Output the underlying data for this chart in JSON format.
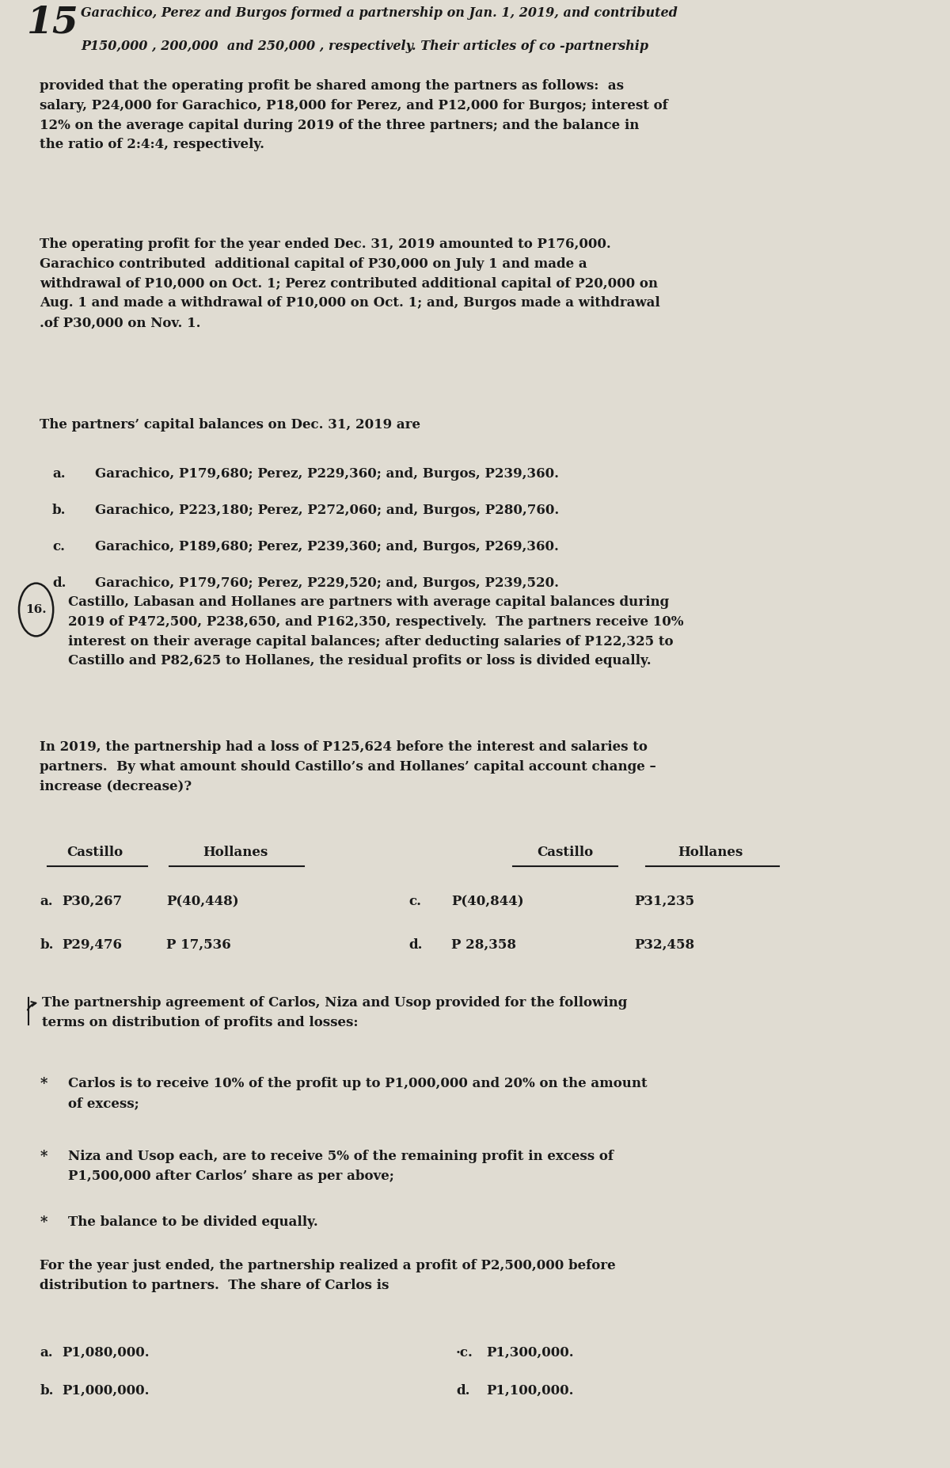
{
  "bg_color": "#e0dcd2",
  "text_color": "#1a1a1a",
  "font_family": "DejaVu Serif",
  "page_width": 12.0,
  "page_height": 18.54,
  "q15_hw_line1": "Garachico, Perez and Burgos formed a partnership on Jan. 1, 2019, and contributed",
  "q15_hw_line2": "P150,000 , 200,000  and 250,000 , respectively. Their articles of co -partnership",
  "q15_body1": "provided that the operating profit be shared among the partners as follows:  as\nsalary, P24,000 for Garachico, P18,000 for Perez, and P12,000 for Burgos; interest of\n12% on the average capital during 2019 of the three partners; and the balance in\nthe ratio of 2:4:4, respectively.",
  "q15_body2": "The operating profit for the year ended Dec. 31, 2019 amounted to P176,000.\nGarachico contributed  additional capital of P30,000 on July 1 and made a\nwithdrawal of P10,000 on Oct. 1; Perez contributed additional capital of P20,000 on\nAug. 1 and made a withdrawal of P10,000 on Oct. 1; and, Burgos made a withdrawal\n.of P30,000 on Nov. 1.",
  "q15_para3": "The partners’ capital balances on Dec. 31, 2019 are",
  "q15_choices": [
    [
      "a.",
      "Garachico, P179,680; Perez, P229,360; and, Burgos, P239,360."
    ],
    [
      "b.",
      "Garachico, P223,180; Perez, P272,060; and, Burgos, P280,760."
    ],
    [
      "c.",
      "Garachico, P189,680; Perez, P239,360; and, Burgos, P269,360."
    ],
    [
      "d.",
      "Garachico, P179,760; Perez, P229,520; and, Burgos, P239,520."
    ]
  ],
  "q16_body1": "Castillo, Labasan and Hollanes are partners with average capital balances during\n2019 of P472,500, P238,650, and P162,350, respectively.  The partners receive 10%\ninterest on their average capital balances; after deducting salaries of P122,325 to\nCastillo and P82,625 to Hollanes, the residual profits or loss is divided equally.",
  "q16_body2": "In 2019, the partnership had a loss of P125,624 before the interest and salaries to\npartners.  By what amount should Castillo’s and Hollanes’ capital account change –\nincrease (decrease)?",
  "q16_hdr": [
    "Castillo",
    "Hollanes",
    "Castillo",
    "Hollanes"
  ],
  "q16_r1": [
    "a.",
    "P30,267",
    "P(40,448)",
    "c.",
    "P(40,844)",
    "P31,235"
  ],
  "q16_r2": [
    "b.",
    "P29,476",
    "P 17,536",
    "d.",
    "P 28,358",
    "P32,458"
  ],
  "q17_intro": "The partnership agreement of Carlos, Niza and Usop provided for the following\nterms on distribution of profits and losses:",
  "q17_bullets": [
    "Carlos is to receive 10% of the profit up to P1,000,000 and 20% on the amount\nof excess;",
    "Niza and Usop each, are to receive 5% of the remaining profit in excess of\nP1,500,000 after Carlos’ share as per above;",
    "The balance to be divided equally."
  ],
  "q17_body2": "For the year just ended, the partnership realized a profit of P2,500,000 before\ndistribution to partners.  The share of Carlos is",
  "q17_left": [
    "a.",
    "P1,080,000.",
    "b.",
    "P1,000,000."
  ],
  "q17_right": [
    "·c.",
    "P1,300,000.",
    "d.",
    "P1,100,000."
  ]
}
